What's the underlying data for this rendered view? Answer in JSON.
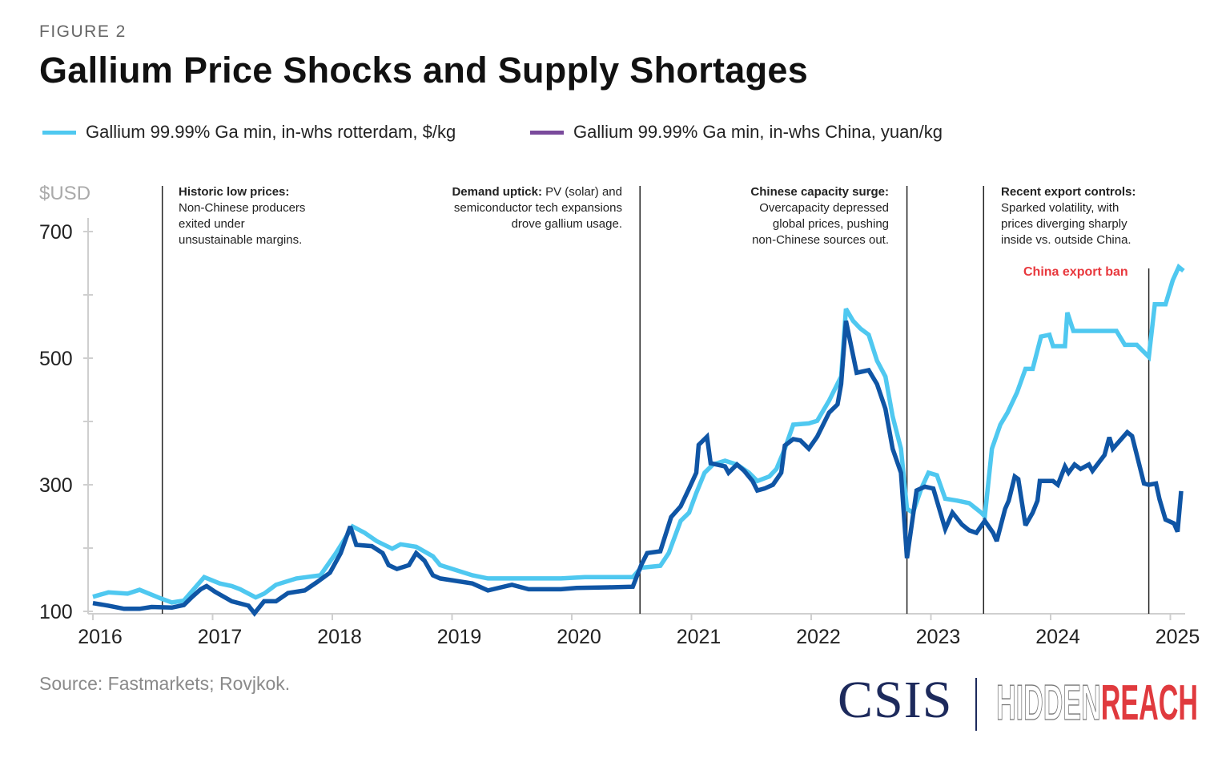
{
  "figure_label": "FIGURE 2",
  "source": "Source: Fastmarkets; Rovjkok.",
  "logo": {
    "left": "CSIS",
    "right_outline": "HIDDEN",
    "right_solid": "REACH"
  },
  "colors": {
    "rotterdam": "#4fc8f0",
    "china_line": "#0f55a5",
    "china_legend": "#7a4a9c",
    "annotation_line": "#222222",
    "ban_label": "#e8383d"
  },
  "chart_data": {
    "type": "line",
    "title": "Gallium Price Shocks and Supply Shortages",
    "xlabel": "",
    "ylabel": "$USD",
    "xlim": [
      2016,
      2025.15
    ],
    "ylim": [
      100,
      740
    ],
    "x_ticks": [
      "2016",
      "2017",
      "2018",
      "2019",
      "2020",
      "2021",
      "2022",
      "2023",
      "2024",
      "2025"
    ],
    "y_ticks": [
      100,
      300,
      500,
      700
    ],
    "y_minor_ticks": [
      200,
      400,
      600
    ],
    "grid": false,
    "legend_placement": "top",
    "series": [
      {
        "name": "Gallium 99.99% Ga min, in-whs rotterdam, $/kg",
        "x": [
          2016.0,
          2016.13,
          2016.29,
          2016.39,
          2016.56,
          2016.66,
          2016.76,
          2016.93,
          2017.06,
          2017.16,
          2017.23,
          2017.36,
          2017.43,
          2017.53,
          2017.7,
          2017.9,
          2018.03,
          2018.17,
          2018.27,
          2018.37,
          2018.5,
          2018.57,
          2018.7,
          2018.84,
          2018.9,
          2019.17,
          2019.3,
          2019.57,
          2019.91,
          2020.11,
          2020.51,
          2020.58,
          2020.74,
          2020.81,
          2020.91,
          2020.98,
          2021.04,
          2021.11,
          2021.18,
          2021.28,
          2021.38,
          2021.48,
          2021.55,
          2021.65,
          2021.71,
          2021.78,
          2021.85,
          2021.98,
          2022.05,
          2022.15,
          2022.25,
          2022.29,
          2022.35,
          2022.41,
          2022.48,
          2022.55,
          2022.62,
          2022.68,
          2022.75,
          2022.8,
          2022.85,
          2022.92,
          2022.98,
          2023.05,
          2023.12,
          2023.22,
          2023.32,
          2023.42,
          2023.45,
          2023.51,
          2023.58,
          2023.64,
          2023.72,
          2023.79,
          2023.85,
          2023.92,
          2023.99,
          2024.02,
          2024.12,
          2024.14,
          2024.19,
          2024.55,
          2024.62,
          2024.72,
          2024.82,
          2024.87,
          2024.96,
          2025.02,
          2025.07,
          2025.11
        ],
        "y": [
          123,
          130,
          128,
          134,
          121,
          114,
          117,
          154,
          144,
          140,
          135,
          122,
          128,
          142,
          152,
          157,
          192,
          234,
          224,
          211,
          199,
          206,
          202,
          187,
          173,
          157,
          152,
          152,
          152,
          154,
          154,
          169,
          172,
          192,
          243,
          256,
          287,
          319,
          332,
          338,
          332,
          319,
          306,
          313,
          325,
          357,
          395,
          397,
          401,
          433,
          471,
          578,
          559,
          547,
          537,
          496,
          471,
          408,
          357,
          262,
          256,
          294,
          319,
          315,
          278,
          275,
          271,
          256,
          250,
          357,
          395,
          414,
          446,
          483,
          483,
          534,
          537,
          519,
          519,
          572,
          543,
          543,
          521,
          521,
          502,
          585,
          585,
          623,
          644,
          638
        ]
      },
      {
        "name": "Gallium 99.99% Ga min, in-whs China, yuan/kg",
        "x": [
          2016.0,
          2016.13,
          2016.26,
          2016.39,
          2016.49,
          2016.66,
          2016.76,
          2016.83,
          2016.9,
          2016.95,
          2017.02,
          2017.16,
          2017.3,
          2017.35,
          2017.43,
          2017.53,
          2017.63,
          2017.77,
          2017.87,
          2017.98,
          2018.07,
          2018.15,
          2018.2,
          2018.33,
          2018.42,
          2018.47,
          2018.54,
          2018.64,
          2018.7,
          2018.77,
          2018.84,
          2018.9,
          2019.17,
          2019.3,
          2019.5,
          2019.64,
          2019.91,
          2020.04,
          2020.31,
          2020.51,
          2020.58,
          2020.63,
          2020.74,
          2020.83,
          2020.91,
          2020.98,
          2021.04,
          2021.06,
          2021.13,
          2021.16,
          2021.28,
          2021.31,
          2021.38,
          2021.44,
          2021.51,
          2021.55,
          2021.61,
          2021.68,
          2021.75,
          2021.78,
          2021.85,
          2021.91,
          2021.98,
          2022.05,
          2022.15,
          2022.22,
          2022.25,
          2022.29,
          2022.38,
          2022.48,
          2022.55,
          2022.62,
          2022.68,
          2022.75,
          2022.8,
          2022.88,
          2022.95,
          2023.02,
          2023.12,
          2023.18,
          2023.26,
          2023.32,
          2023.38,
          2023.45,
          2023.52,
          2023.55,
          2023.62,
          2023.65,
          2023.7,
          2023.73,
          2023.79,
          2023.85,
          2023.89,
          2023.91,
          2024.02,
          2024.06,
          2024.12,
          2024.15,
          2024.2,
          2024.25,
          2024.32,
          2024.35,
          2024.45,
          2024.49,
          2024.52,
          2024.58,
          2024.64,
          2024.68,
          2024.78,
          2024.82,
          2024.88,
          2024.91,
          2024.96,
          2025.03,
          2025.06,
          2025.09
        ],
        "y": [
          113,
          109,
          104,
          104,
          107,
          106,
          110,
          123,
          135,
          140,
          131,
          116,
          109,
          97,
          116,
          116,
          129,
          133,
          146,
          161,
          192,
          234,
          205,
          203,
          192,
          173,
          167,
          173,
          192,
          180,
          157,
          152,
          144,
          133,
          142,
          135,
          135,
          137,
          138,
          139,
          173,
          192,
          195,
          249,
          266,
          294,
          319,
          363,
          376,
          334,
          329,
          319,
          332,
          322,
          306,
          291,
          294,
          300,
          319,
          362,
          372,
          370,
          357,
          376,
          414,
          427,
          459,
          559,
          477,
          481,
          459,
          420,
          357,
          319,
          184,
          291,
          297,
          294,
          230,
          256,
          237,
          228,
          224,
          243,
          224,
          211,
          262,
          275,
          313,
          309,
          236,
          256,
          275,
          306,
          306,
          300,
          329,
          319,
          332,
          325,
          332,
          322,
          347,
          375,
          357,
          370,
          383,
          377,
          302,
          300,
          302,
          277,
          245,
          239,
          226,
          290
        ]
      }
    ],
    "annotations": [
      {
        "x": 2016.58,
        "bold": "Historic low prices:",
        "text": "Non-Chinese producers exited under unsustainable margins.",
        "lines": [
          "Non-Chinese producers",
          "exited under",
          "unsustainable margins."
        ]
      },
      {
        "x": 2020.57,
        "bold": "Demand uptick:",
        "text": "PV (solar) and semiconductor tech expansions drove gallium usage.",
        "lines": [
          " PV (solar) and",
          "semiconductor tech expansions",
          "drove gallium usage."
        ]
      },
      {
        "x": 2022.8,
        "bold": "Chinese capacity surge:",
        "text": "Overcapacity depressed global prices, pushing non-Chinese sources out.",
        "lines": [
          "Overcapacity depressed",
          "global prices, pushing",
          "non-Chinese sources out."
        ]
      },
      {
        "x": 2023.44,
        "bold": "Recent export controls:",
        "text": "Sparked volatility, with prices diverging sharply inside vs. outside China.",
        "lines": [
          "Sparked volatility, with",
          "prices diverging sharply",
          "inside vs. outside China."
        ]
      },
      {
        "x": 2024.82,
        "label": "China export ban"
      }
    ]
  }
}
